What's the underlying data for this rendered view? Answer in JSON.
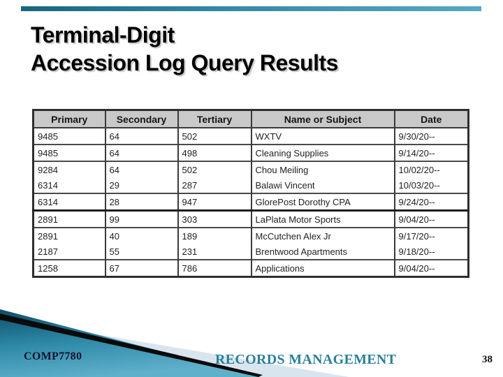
{
  "slide": {
    "title_line1": "Terminal-Digit",
    "title_line2": "Accession Log Query Results"
  },
  "table": {
    "headers": [
      "Primary",
      "Secondary",
      "Tertiary",
      "Name or Subject",
      "Date"
    ],
    "rows": [
      [
        "9485",
        "64",
        "502",
        "WXTV",
        "9/30/20--"
      ],
      [
        "9485",
        "64",
        "498",
        "Cleaning Supplies",
        "9/14/20--"
      ],
      [
        "9284",
        "64",
        "502",
        "Chou Meiling",
        "10/02/20--"
      ],
      [
        "6314",
        "29",
        "287",
        "Balawi Vincent",
        "10/03/20--"
      ],
      [
        "6314",
        "28",
        "947",
        "GlorePost Dorothy CPA",
        "9/24/20--"
      ],
      [
        "2891",
        "99",
        "303",
        "LaPlata Motor Sports",
        "9/04/20--"
      ],
      [
        "2891",
        "40",
        "189",
        "McCutchen Alex Jr",
        "9/17/20--"
      ],
      [
        "2187",
        "55",
        "231",
        "Brentwood Apartments",
        "9/18/20--"
      ],
      [
        "1258",
        "67",
        "786",
        "Applications",
        "9/04/20--"
      ]
    ]
  },
  "footer": {
    "course_code": "COMP7780",
    "title": "RECORDS MANAGEMENT",
    "page_number": "38"
  },
  "colors": {
    "accent_teal": "#2a7f98",
    "table_header_bg": "#c9c9c9",
    "teal_gradient_dark": "#0b4e67",
    "teal_gradient_light": "#5fb0ca",
    "pale_triangle": "#d9e5ee",
    "streak_black": "#0a0a0a"
  }
}
